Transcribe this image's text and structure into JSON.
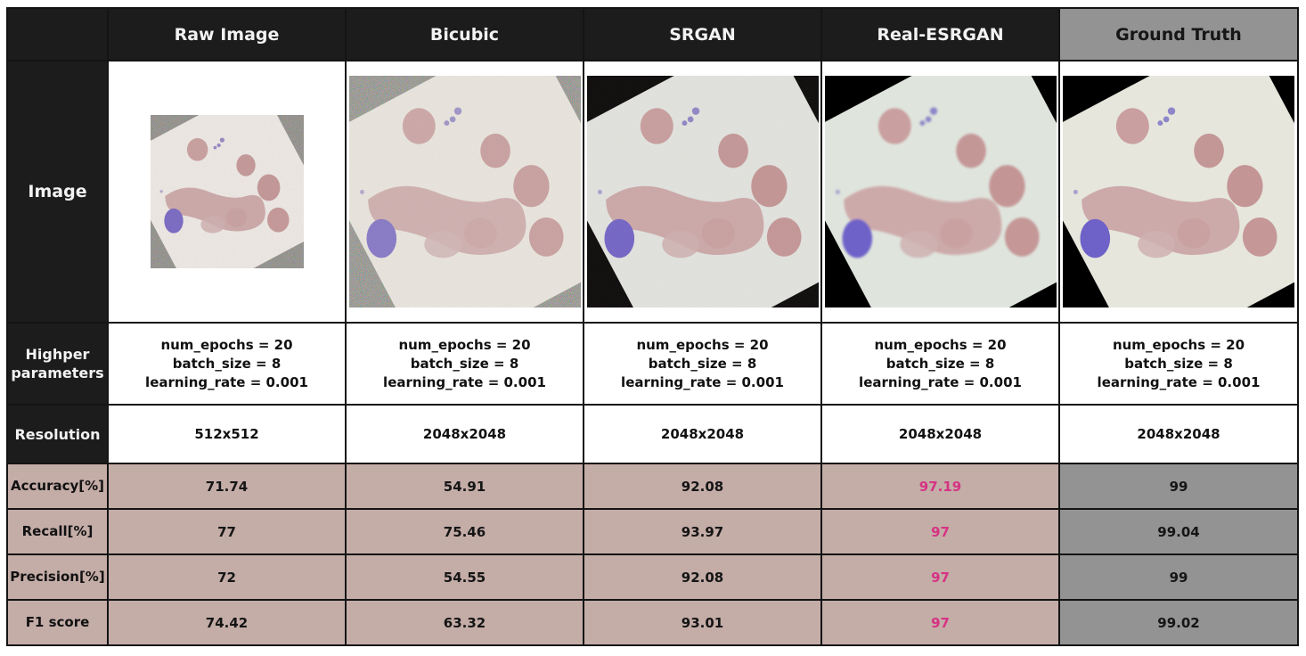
{
  "corner_label": "",
  "columns": [
    "Raw Image",
    "Bicubic",
    "SRGAN",
    "Real-ESRGAN",
    "Ground Truth"
  ],
  "row_labels": {
    "image": "Image",
    "params": [
      "Highper",
      "parameters"
    ],
    "resolution": "Resolution"
  },
  "hyperparameters": {
    "num_epochs": "num_epochs = 20",
    "batch_size": "batch_size = 8",
    "learning_rate": "learning_rate = 0.001"
  },
  "resolutions": [
    "512x512",
    "2048x2048",
    "2048x2048",
    "2048x2048",
    "2048x2048"
  ],
  "colors": {
    "header_bg": "#1c1c1c",
    "metric_bg": "#c4aca7",
    "ground_truth_bg": "#939393",
    "best_value": "#d63384"
  },
  "chart_data": {
    "type": "table",
    "title": "",
    "columns": [
      "Raw Image",
      "Bicubic",
      "SRGAN",
      "Real-ESRGAN",
      "Ground Truth"
    ],
    "rows": [
      {
        "label": "Accuracy[%]",
        "values": [
          "71.74",
          "54.91",
          "92.08",
          "97.19",
          "99"
        ]
      },
      {
        "label": "Recall[%]",
        "values": [
          "77",
          "75.46",
          "93.97",
          "97",
          "99.04"
        ]
      },
      {
        "label": "Precision[%]",
        "values": [
          "72",
          "54.55",
          "92.08",
          "97",
          "99"
        ]
      },
      {
        "label": "F1 score",
        "values": [
          "74.42",
          "63.32",
          "93.01",
          "97",
          "99.02"
        ]
      }
    ],
    "highlight_column": "Real-ESRGAN",
    "highlight_color": "#d63384"
  }
}
